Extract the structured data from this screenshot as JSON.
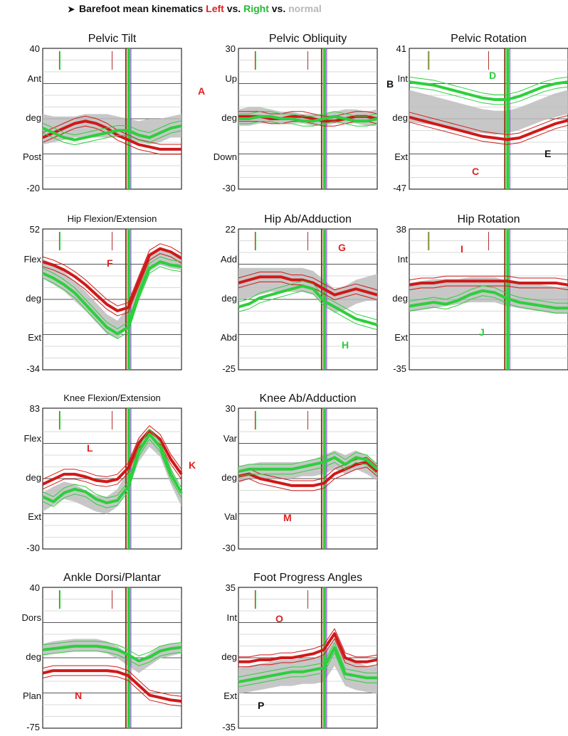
{
  "header": {
    "bullet": "➤",
    "prefix": "Barefoot mean kinematics ",
    "left": "Left",
    "vs1": " vs. ",
    "right": "Right",
    "vs2": " vs. ",
    "normal": "normal"
  },
  "colors": {
    "left": "#d01818",
    "right": "#2ccf3c",
    "normal_band": "#bdbdbd",
    "grid": "#000000",
    "vline_purple": "#8a2be2",
    "vline_brown": "#8b3a10"
  },
  "chart_data": [
    {
      "type": "line",
      "title": "Pelvic Tilt",
      "ymax": "40",
      "ymin": "-20",
      "ylim": [
        -20,
        40
      ],
      "labels": [
        "Ant",
        "deg",
        "Post"
      ],
      "left_mean": [
        2,
        4,
        6,
        8,
        9,
        8,
        6,
        3,
        1,
        -1,
        -2,
        -3,
        -3,
        -3
      ],
      "right_mean": [
        6,
        4,
        2,
        1,
        2,
        3,
        4,
        5,
        5,
        3,
        2,
        4,
        6,
        7
      ],
      "normal": [
        [
          -1,
          12
        ],
        [
          0,
          11
        ],
        [
          1,
          11
        ],
        [
          2,
          11
        ],
        [
          2,
          12
        ],
        [
          2,
          12
        ],
        [
          2,
          12
        ],
        [
          2,
          11
        ],
        [
          1,
          10
        ],
        [
          0,
          9
        ],
        [
          -1,
          10
        ],
        [
          0,
          10
        ],
        [
          2,
          11
        ],
        [
          2,
          12
        ]
      ],
      "annotations": [
        "A"
      ]
    },
    {
      "type": "line",
      "title": "Pelvic Obliquity",
      "ymax": "30",
      "ymin": "-30",
      "ylim": [
        -30,
        30
      ],
      "labels": [
        "Up",
        "deg",
        "Down"
      ],
      "left_mean": [
        1,
        1,
        1,
        0,
        0,
        1,
        1,
        0,
        -1,
        -1,
        0,
        1,
        1,
        0
      ],
      "right_mean": [
        0,
        0,
        1,
        1,
        0,
        0,
        -1,
        -1,
        0,
        1,
        0,
        -1,
        -1,
        0
      ],
      "normal": [
        [
          -3,
          4
        ],
        [
          -3,
          5
        ],
        [
          -2,
          5
        ],
        [
          -2,
          4
        ],
        [
          -2,
          3
        ],
        [
          -2,
          3
        ],
        [
          -2,
          2
        ],
        [
          -3,
          2
        ],
        [
          -3,
          2
        ],
        [
          -2,
          3
        ],
        [
          -2,
          4
        ],
        [
          -2,
          4
        ],
        [
          -3,
          3
        ],
        [
          -3,
          4
        ]
      ],
      "annotations": [
        "B"
      ]
    },
    {
      "type": "line",
      "title": "Pelvic Rotation",
      "ymax": "41",
      "ymin": "-47",
      "ylim": [
        -47,
        41
      ],
      "labels": [
        "Int",
        "deg",
        "Ext"
      ],
      "left_mean": [
        -2,
        -4,
        -6,
        -8,
        -10,
        -12,
        -14,
        -15,
        -16,
        -15,
        -12,
        -9,
        -6,
        -4
      ],
      "right_mean": [
        20,
        19,
        18,
        16,
        14,
        12,
        10,
        9,
        9,
        11,
        14,
        17,
        19,
        20
      ],
      "normal": [
        [
          -5,
          15
        ],
        [
          -6,
          13
        ],
        [
          -7,
          11
        ],
        [
          -8,
          9
        ],
        [
          -10,
          7
        ],
        [
          -11,
          5
        ],
        [
          -12,
          3
        ],
        [
          -13,
          2
        ],
        [
          -12,
          2
        ],
        [
          -10,
          4
        ],
        [
          -7,
          7
        ],
        [
          -4,
          10
        ],
        [
          -2,
          13
        ],
        [
          0,
          15
        ]
      ],
      "annotations": [
        "C",
        "D",
        "E"
      ]
    },
    {
      "type": "line",
      "title": "Hip Flexion/Extension",
      "ymax": "52",
      "ymin": "-34",
      "ylim": [
        -34,
        52
      ],
      "labels": [
        "Flex",
        "deg",
        "Ext"
      ],
      "left_mean": [
        32,
        30,
        27,
        23,
        18,
        12,
        6,
        2,
        4,
        20,
        36,
        40,
        38,
        34
      ],
      "right_mean": [
        25,
        22,
        18,
        13,
        6,
        -1,
        -8,
        -12,
        -8,
        12,
        28,
        32,
        30,
        29
      ],
      "normal": [
        [
          22,
          34
        ],
        [
          18,
          30
        ],
        [
          14,
          26
        ],
        [
          8,
          20
        ],
        [
          2,
          14
        ],
        [
          -5,
          7
        ],
        [
          -12,
          0
        ],
        [
          -15,
          -4
        ],
        [
          -8,
          4
        ],
        [
          12,
          24
        ],
        [
          26,
          36
        ],
        [
          30,
          40
        ],
        [
          28,
          38
        ],
        [
          27,
          36
        ]
      ],
      "annotations": [
        "F"
      ]
    },
    {
      "type": "line",
      "title": "Hip Ab/Adduction",
      "ymax": "22",
      "ymin": "-25",
      "ylim": [
        -25,
        22
      ],
      "labels": [
        "Add",
        "deg",
        "Abd"
      ],
      "left_mean": [
        4,
        5,
        6,
        6,
        6,
        5,
        5,
        4,
        2,
        0,
        1,
        2,
        1,
        0
      ],
      "right_mean": [
        -4,
        -3,
        -1,
        0,
        1,
        2,
        3,
        2,
        -2,
        -4,
        -6,
        -8,
        -9,
        -10
      ],
      "normal": [
        [
          -2,
          9
        ],
        [
          -1,
          9
        ],
        [
          0,
          9
        ],
        [
          1,
          9
        ],
        [
          1,
          9
        ],
        [
          1,
          9
        ],
        [
          1,
          9
        ],
        [
          0,
          8
        ],
        [
          -3,
          5
        ],
        [
          -6,
          2
        ],
        [
          -5,
          3
        ],
        [
          -3,
          5
        ],
        [
          -2,
          6
        ],
        [
          -2,
          7
        ]
      ],
      "annotations": [
        "G",
        "H"
      ]
    },
    {
      "type": "line",
      "title": "Hip Rotation",
      "ymax": "38",
      "ymin": "-35",
      "ylim": [
        -35,
        38
      ],
      "labels": [
        "Int",
        "deg",
        "Ext"
      ],
      "left_mean": [
        9,
        10,
        10,
        11,
        11,
        11,
        11,
        11,
        11,
        10,
        10,
        10,
        10,
        9
      ],
      "right_mean": [
        -2,
        -1,
        0,
        -1,
        1,
        4,
        6,
        5,
        2,
        0,
        -1,
        -2,
        -3,
        -3
      ],
      "normal": [
        [
          -5,
          10
        ],
        [
          -4,
          11
        ],
        [
          -3,
          12
        ],
        [
          -2,
          12
        ],
        [
          -1,
          12
        ],
        [
          0,
          13
        ],
        [
          0,
          13
        ],
        [
          0,
          13
        ],
        [
          -2,
          11
        ],
        [
          -3,
          10
        ],
        [
          -4,
          10
        ],
        [
          -5,
          9
        ],
        [
          -6,
          8
        ],
        [
          -6,
          8
        ]
      ],
      "annotations": [
        "I",
        "J"
      ]
    },
    {
      "type": "line",
      "title": "Knee Flexion/Extension",
      "ymax": "83",
      "ymin": "-30",
      "ylim": [
        -30,
        83
      ],
      "labels": [
        "Flex",
        "deg",
        "Ext"
      ],
      "left_mean": [
        22,
        26,
        30,
        30,
        28,
        25,
        24,
        26,
        35,
        55,
        65,
        58,
        42,
        30
      ],
      "right_mean": [
        12,
        8,
        15,
        18,
        16,
        10,
        7,
        9,
        20,
        48,
        62,
        52,
        30,
        15
      ],
      "normal": [
        [
          0,
          15
        ],
        [
          5,
          20
        ],
        [
          10,
          24
        ],
        [
          8,
          22
        ],
        [
          4,
          17
        ],
        [
          0,
          13
        ],
        [
          -2,
          12
        ],
        [
          4,
          18
        ],
        [
          18,
          34
        ],
        [
          40,
          58
        ],
        [
          52,
          66
        ],
        [
          44,
          58
        ],
        [
          22,
          36
        ],
        [
          4,
          16
        ]
      ],
      "annotations": [
        "K",
        "L"
      ]
    },
    {
      "type": "line",
      "title": "Knee Ab/Adduction",
      "ymax": "30",
      "ymin": "-30",
      "ylim": [
        -30,
        30
      ],
      "labels": [
        "Var",
        "deg",
        "Val"
      ],
      "left_mean": [
        1,
        2,
        0,
        -1,
        -2,
        -3,
        -3,
        -3,
        -2,
        2,
        4,
        6,
        7,
        3
      ],
      "right_mean": [
        3,
        4,
        4,
        4,
        4,
        4,
        5,
        6,
        7,
        9,
        6,
        9,
        8,
        4
      ],
      "normal": [
        [
          -2,
          5
        ],
        [
          0,
          6
        ],
        [
          0,
          7
        ],
        [
          0,
          7
        ],
        [
          0,
          7
        ],
        [
          0,
          7
        ],
        [
          1,
          7
        ],
        [
          1,
          8
        ],
        [
          2,
          10
        ],
        [
          4,
          12
        ],
        [
          2,
          10
        ],
        [
          4,
          12
        ],
        [
          2,
          10
        ],
        [
          -1,
          6
        ]
      ],
      "annotations": [
        "M"
      ]
    },
    {
      "type": "line",
      "title": "Ankle Dorsi/Plantar",
      "ymax": "40",
      "ymin": "-75",
      "ylim": [
        -75,
        40
      ],
      "labels": [
        "Dors",
        "deg",
        "Plan"
      ],
      "left_mean": [
        -30,
        -28,
        -28,
        -28,
        -28,
        -28,
        -28,
        -29,
        -32,
        -40,
        -48,
        -50,
        -52,
        -53
      ],
      "right_mean": [
        -11,
        -10,
        -9,
        -8,
        -8,
        -8,
        -9,
        -11,
        -15,
        -20,
        -17,
        -12,
        -10,
        -9
      ],
      "normal": [
        [
          -16,
          -6
        ],
        [
          -14,
          -4
        ],
        [
          -13,
          -3
        ],
        [
          -12,
          -2
        ],
        [
          -12,
          -2
        ],
        [
          -12,
          -2
        ],
        [
          -14,
          -4
        ],
        [
          -18,
          -8
        ],
        [
          -24,
          -14
        ],
        [
          -30,
          -20
        ],
        [
          -24,
          -14
        ],
        [
          -18,
          -8
        ],
        [
          -16,
          -6
        ],
        [
          -14,
          -5
        ]
      ],
      "annotations": [
        "N"
      ]
    },
    {
      "type": "line",
      "title": "Foot Progress Angles",
      "ymax": "35",
      "ymin": "-35",
      "ylim": [
        -35,
        35
      ],
      "labels": [
        "Int",
        "deg",
        "Ext"
      ],
      "left_mean": [
        -2,
        -2,
        -1,
        -1,
        0,
        0,
        1,
        2,
        4,
        12,
        0,
        -2,
        -2,
        -1
      ],
      "right_mean": [
        -12,
        -11,
        -10,
        -9,
        -8,
        -7,
        -7,
        -6,
        -5,
        5,
        -8,
        -9,
        -10,
        -10
      ],
      "normal": [
        [
          -18,
          -5
        ],
        [
          -17,
          -4
        ],
        [
          -16,
          -3
        ],
        [
          -15,
          -2
        ],
        [
          -14,
          -1
        ],
        [
          -14,
          -1
        ],
        [
          -13,
          0
        ],
        [
          -13,
          0
        ],
        [
          -12,
          1
        ],
        [
          -4,
          10
        ],
        [
          -14,
          0
        ],
        [
          -16,
          -2
        ],
        [
          -17,
          -4
        ],
        [
          -18,
          -4
        ]
      ],
      "annotations": [
        "O",
        "P"
      ]
    }
  ]
}
